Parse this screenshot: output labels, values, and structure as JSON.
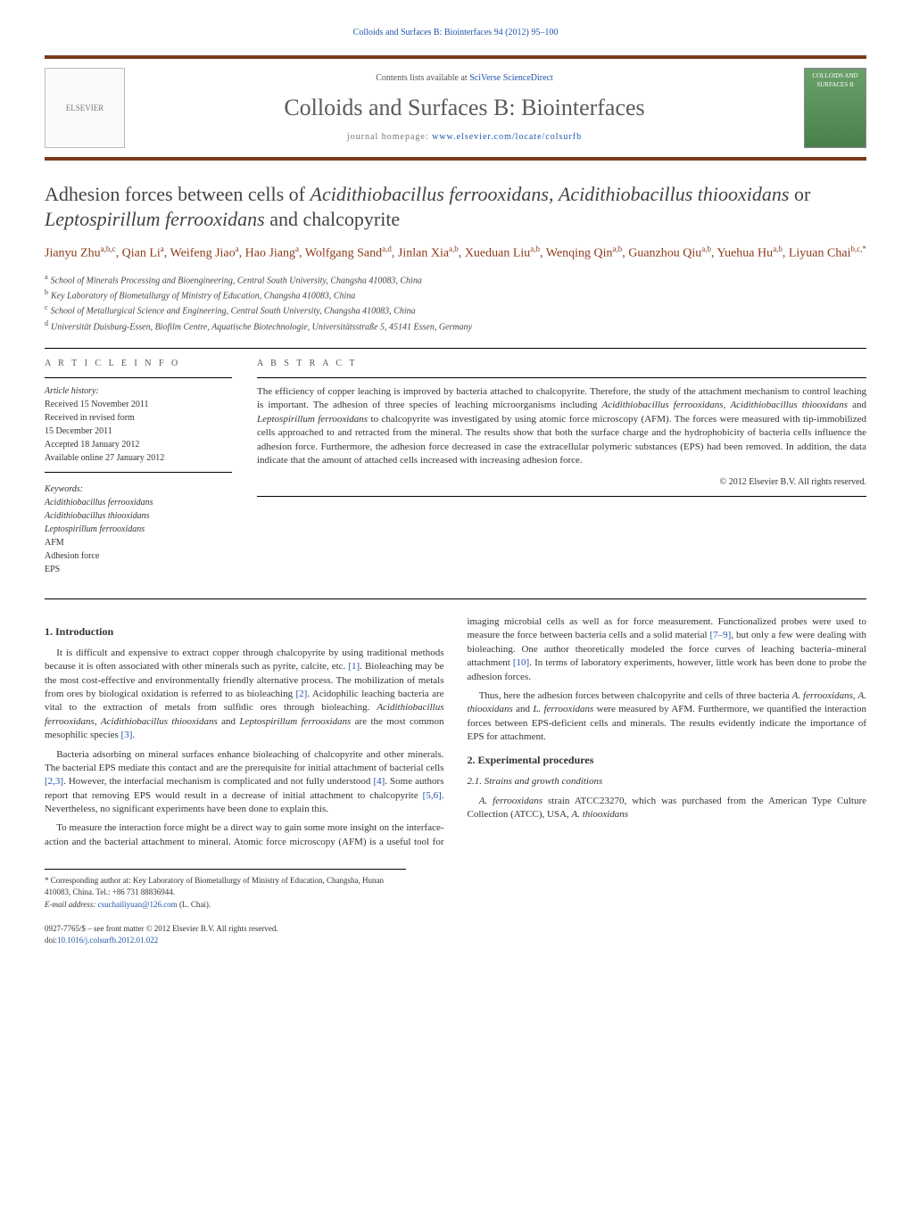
{
  "running_header": "Colloids and Surfaces B: Biointerfaces 94 (2012) 95–100",
  "masthead": {
    "elsevier_label": "ELSEVIER",
    "contents_prefix": "Contents lists available at ",
    "contents_link": "SciVerse ScienceDirect",
    "journal_name": "Colloids and Surfaces B: Biointerfaces",
    "homepage_prefix": "journal homepage: ",
    "homepage_url": "www.elsevier.com/locate/colsurfb",
    "cover_caption": "COLLOIDS AND SURFACES B"
  },
  "title_parts": {
    "p1": "Adhesion forces between cells of ",
    "s1": "Acidithiobacillus ferrooxidans",
    "p2": ", ",
    "s2": "Acidithiobacillus thiooxidans",
    "p3": " or ",
    "s3": "Leptospirillum ferrooxidans",
    "p4": " and chalcopyrite"
  },
  "authors_html": "Jianyu Zhu<sup>a,b,c</sup>, Qian Li<sup>a</sup>, Weifeng Jiao<sup>a</sup>, Hao Jiang<sup>a</sup>, Wolfgang Sand<sup>a,d</sup>, Jinlan Xia<sup>a,b</sup>, Xueduan Liu<sup>a,b</sup>, Wenqing Qin<sup>a,b</sup>, Guanzhou Qiu<sup>a,b</sup>, Yuehua Hu<sup>a,b</sup>, Liyuan Chai<sup>b,c,*</sup>",
  "affiliations": {
    "a": "School of Minerals Processing and Bioengineering, Central South University, Changsha 410083, China",
    "b": "Key Laboratory of Biometallurgy of Ministry of Education, Changsha 410083, China",
    "c": "School of Metallurgical Science and Engineering, Central South University, Changsha 410083, China",
    "d": "Universität Duisburg-Essen, Biofilm Centre, Aquatische Biotechnologie, Universitätsstraße 5, 45141 Essen, Germany"
  },
  "article_info_heading": "A R T I C L E   I N F O",
  "history": {
    "label": "Article history:",
    "received": "Received 15 November 2011",
    "revised1": "Received in revised form",
    "revised2": "15 December 2011",
    "accepted": "Accepted 18 January 2012",
    "online": "Available online 27 January 2012"
  },
  "keywords": {
    "label": "Keywords:",
    "k1": "Acidithiobacillus ferrooxidans",
    "k2": "Acidithiobacillus thiooxidans",
    "k3": "Leptospirillum ferrooxidans",
    "k4": "AFM",
    "k5": "Adhesion force",
    "k6": "EPS"
  },
  "abstract_heading": "A B S T R A C T",
  "abstract_parts": {
    "p1": "The efficiency of copper leaching is improved by bacteria attached to chalcopyrite. Therefore, the study of the attachment mechanism to control leaching is important. The adhesion of three species of leaching microorganisms including ",
    "s1": "Acidithiobacillus ferrooxidans",
    "p2": ", ",
    "s2": "Acidithiobacillus thiooxidans",
    "p3": " and ",
    "s3": "Leptospirillum ferrooxidans",
    "p4": " to chalcopyrite was investigated by using atomic force microscopy (AFM). The forces were measured with tip-immobilized cells approached to and retracted from the mineral. The results show that both the surface charge and the hydrophobicity of bacteria cells influence the adhesion force. Furthermore, the adhesion force decreased in case the extracellular polymeric substances (EPS) had been removed. In addition, the data indicate that the amount of attached cells increased with increasing adhesion force."
  },
  "copyright_line": "© 2012 Elsevier B.V. All rights reserved.",
  "section1_heading": "1.  Introduction",
  "intro_p1_a": "It is difficult and expensive to extract copper through chalcopyrite by using traditional methods because it is often associated with other minerals such as pyrite, calcite, etc. ",
  "intro_p1_ref1": "[1]",
  "intro_p1_b": ". Bioleaching may be the most cost-effective and environmentally friendly alternative process. The mobilization of metals from ores by biological oxidation is referred to as bioleaching ",
  "intro_p1_ref2": "[2]",
  "intro_p1_c": ". Acidophilic leaching bacteria are vital to the extraction of metals from sulfidic ores through bioleaching. ",
  "intro_s1": "Acidithiobacillus ferrooxidans",
  "intro_p1_d": ", ",
  "intro_s2": "Acidithiobacillus thiooxidans",
  "intro_p1_e": " and ",
  "intro_s3": "Leptospirillum ferrooxidans",
  "intro_p1_f": " are the most common mesophilic species ",
  "intro_p1_ref3": "[3]",
  "intro_p1_g": ".",
  "intro_p2_a": "Bacteria adsorbing on mineral surfaces enhance bioleaching of chalcopyrite and other minerals. The bacterial EPS mediate this contact and are the prerequisite for initial attachment of bacterial cells ",
  "intro_p2_ref1": "[2,3]",
  "intro_p2_b": ". However, the interfacial mechanism is complicated and not fully understood ",
  "intro_p2_ref2": "[4]",
  "intro_p2_c": ". Some authors report that removing EPS would result in a decrease of initial attachment to chalcopyrite ",
  "intro_p2_ref3": "[5,6]",
  "intro_p2_d": ". Nevertheless, no significant experiments have been done to explain this.",
  "intro_p3_a": "To measure the interaction force might be a direct way to gain some more insight on the interface-action and the bacterial attachment to mineral. Atomic force microscopy (AFM) is a useful tool for imaging microbial cells as well as for force measurement. Functionalized probes were used to measure the force between bacteria cells and a solid material ",
  "intro_p3_ref1": "[7–9]",
  "intro_p3_b": ", but only a few were dealing with bioleaching. One author theoretically modeled the force curves of leaching bacteria–mineral attachment ",
  "intro_p3_ref2": "[10]",
  "intro_p3_c": ". In terms of laboratory experiments, however, little work has been done to probe the adhesion forces.",
  "intro_p4_a": "Thus, here the adhesion forces between chalcopyrite and cells of three bacteria ",
  "intro_s4": "A. ferrooxidans",
  "intro_p4_b": ", ",
  "intro_s5": "A. thiooxidans",
  "intro_p4_c": " and ",
  "intro_s6": "L. ferrooxidans",
  "intro_p4_d": " were measured by AFM. Furthermore, we quantified the interaction forces between EPS-deficient cells and minerals. The results evidently indicate the importance of EPS for attachment.",
  "section2_heading": "2.  Experimental procedures",
  "section21_heading": "2.1.  Strains and growth conditions",
  "exp_p1_a": "",
  "exp_s1": "A. ferrooxidans",
  "exp_p1_b": " strain ATCC23270, which was purchased from the American Type Culture Collection (ATCC), USA, ",
  "exp_s2": "A. thiooxidans",
  "footnote": {
    "corr_label": "* Corresponding author at: Key Laboratory of Biometallurgy of Ministry of Education, Changsha, Hunan 410083, China. Tel.: +86 731 88836944.",
    "email_label": "E-mail address: ",
    "email": "csuchailiyuan@126.com",
    "email_suffix": " (L. Chai)."
  },
  "footer": {
    "issn_line": "0927-7765/$ – see front matter © 2012 Elsevier B.V. All rights reserved.",
    "doi_prefix": "doi:",
    "doi": "10.1016/j.colsurfb.2012.01.022"
  },
  "colors": {
    "brand_rule": "#7a3a1a",
    "link": "#2255aa",
    "author": "#8a3a1a",
    "text": "#333333",
    "muted": "#555555"
  }
}
